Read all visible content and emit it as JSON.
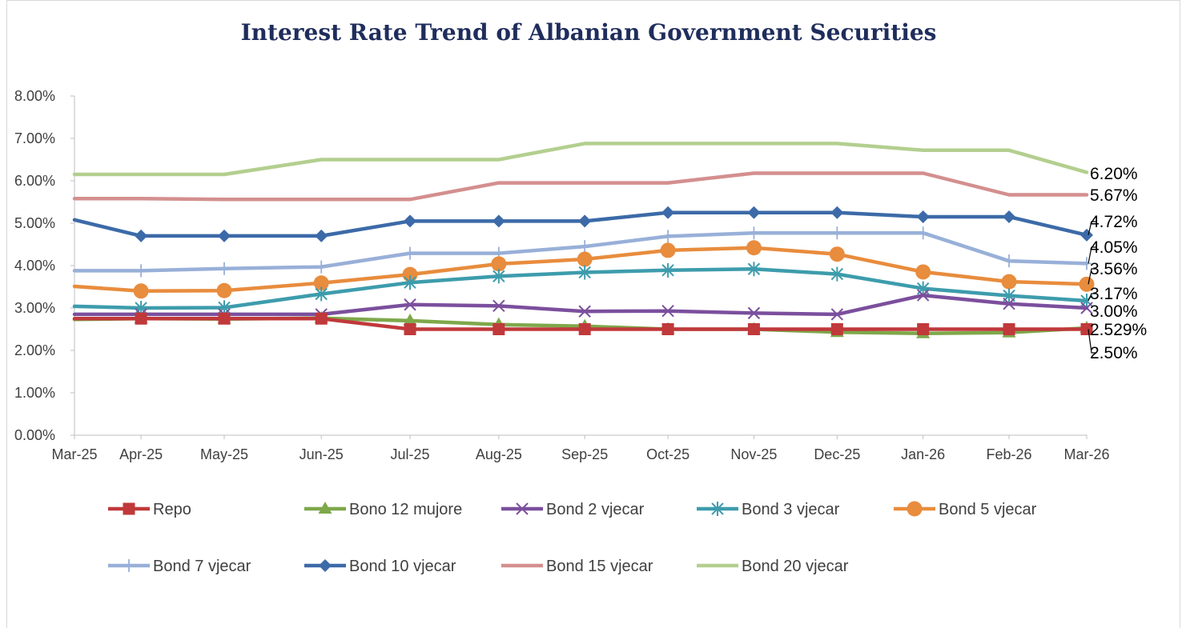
{
  "chart_data": {
    "type": "line",
    "title": "Interest Rate Trend of Albanian Government Securities",
    "xlabel": "",
    "ylabel": "",
    "y_ticks": [
      "0.00%",
      "1.00%",
      "2.00%",
      "3.00%",
      "4.00%",
      "5.00%",
      "6.00%",
      "7.00%",
      "8.00%"
    ],
    "ylim": [
      0,
      8
    ],
    "grid": false,
    "legend_position": "bottom",
    "x_tick_labels": [
      "Mar-25",
      "Apr-25",
      "May-25",
      "Jun-25",
      "Jul-25",
      "Aug-25",
      "Sep-25",
      "Oct-25",
      "Nov-25",
      "Dec-25",
      "Jan-26",
      "Feb-26",
      "Mar-26"
    ],
    "x_dates": [
      "2025-03-01",
      "2025-03-25",
      "2025-04-24",
      "2025-05-29",
      "2025-06-30",
      "2025-08-01",
      "2025-09-01",
      "2025-10-01",
      "2025-11-01",
      "2025-12-01",
      "2026-01-01",
      "2026-02-01",
      "2026-03-01"
    ],
    "series": [
      {
        "name": "Bond 20 vjecar",
        "color": "#b3cf8f",
        "marker": "none",
        "values": [
          6.15,
          6.15,
          6.15,
          6.5,
          6.5,
          6.5,
          6.88,
          6.88,
          6.88,
          6.88,
          6.72,
          6.72,
          6.2
        ]
      },
      {
        "name": "Bond 15 vjecar",
        "color": "#d38f8e",
        "marker": "none",
        "values": [
          5.58,
          5.58,
          5.56,
          5.56,
          5.56,
          5.95,
          5.95,
          5.95,
          6.18,
          6.18,
          6.18,
          5.67,
          5.67
        ]
      },
      {
        "name": "Bond 10 vjecar",
        "color": "#3c6aa8",
        "marker": "diamond",
        "values": [
          5.08,
          4.7,
          4.7,
          4.7,
          5.05,
          5.05,
          5.05,
          5.25,
          5.25,
          5.25,
          5.15,
          5.15,
          4.72
        ]
      },
      {
        "name": "Bond 7 vjecar",
        "color": "#98b0d8",
        "marker": "plus",
        "values": [
          3.88,
          3.88,
          3.93,
          3.97,
          4.29,
          4.29,
          4.45,
          4.69,
          4.77,
          4.77,
          4.77,
          4.11,
          4.05
        ]
      },
      {
        "name": "Bond 5 vjecar",
        "color": "#e88c3d",
        "marker": "circle",
        "values": [
          3.51,
          3.4,
          3.41,
          3.59,
          3.79,
          4.04,
          4.15,
          4.36,
          4.42,
          4.27,
          3.85,
          3.62,
          3.56
        ]
      },
      {
        "name": "Bond 3 vjecar",
        "color": "#3d9cac",
        "marker": "asterisk",
        "values": [
          3.04,
          3.0,
          3.01,
          3.33,
          3.6,
          3.75,
          3.84,
          3.89,
          3.92,
          3.8,
          3.46,
          3.29,
          3.17
        ]
      },
      {
        "name": "Bond 2 vjecar",
        "color": "#7b4f9d",
        "marker": "x",
        "values": [
          2.85,
          2.85,
          2.85,
          2.85,
          3.08,
          3.05,
          2.92,
          2.93,
          2.88,
          2.85,
          3.3,
          3.1,
          3.0
        ]
      },
      {
        "name": "Bono 12 mujore",
        "color": "#7ea84a",
        "marker": "triangle",
        "values": [
          2.73,
          2.75,
          2.74,
          2.76,
          2.7,
          2.61,
          2.57,
          2.5,
          2.5,
          2.43,
          2.4,
          2.42,
          2.529
        ]
      },
      {
        "name": "Repo",
        "color": "#c0393b",
        "marker": "square",
        "values": [
          2.75,
          2.75,
          2.75,
          2.75,
          2.5,
          2.5,
          2.5,
          2.5,
          2.5,
          2.5,
          2.5,
          2.5,
          2.5
        ]
      }
    ],
    "end_labels": [
      "6.20%",
      "5.67%",
      "4.72%",
      "4.05%",
      "3.56%",
      "3.17%",
      "3.00%",
      "2.529%",
      "2.50%"
    ],
    "legend_order": [
      "Repo",
      "Bono 12 mujore",
      "Bond 2 vjecar",
      "Bond 3 vjecar",
      "Bond 5 vjecar",
      "Bond 7 vjecar",
      "Bond 10 vjecar",
      "Bond 15 vjecar",
      "Bond 20 vjecar"
    ]
  }
}
